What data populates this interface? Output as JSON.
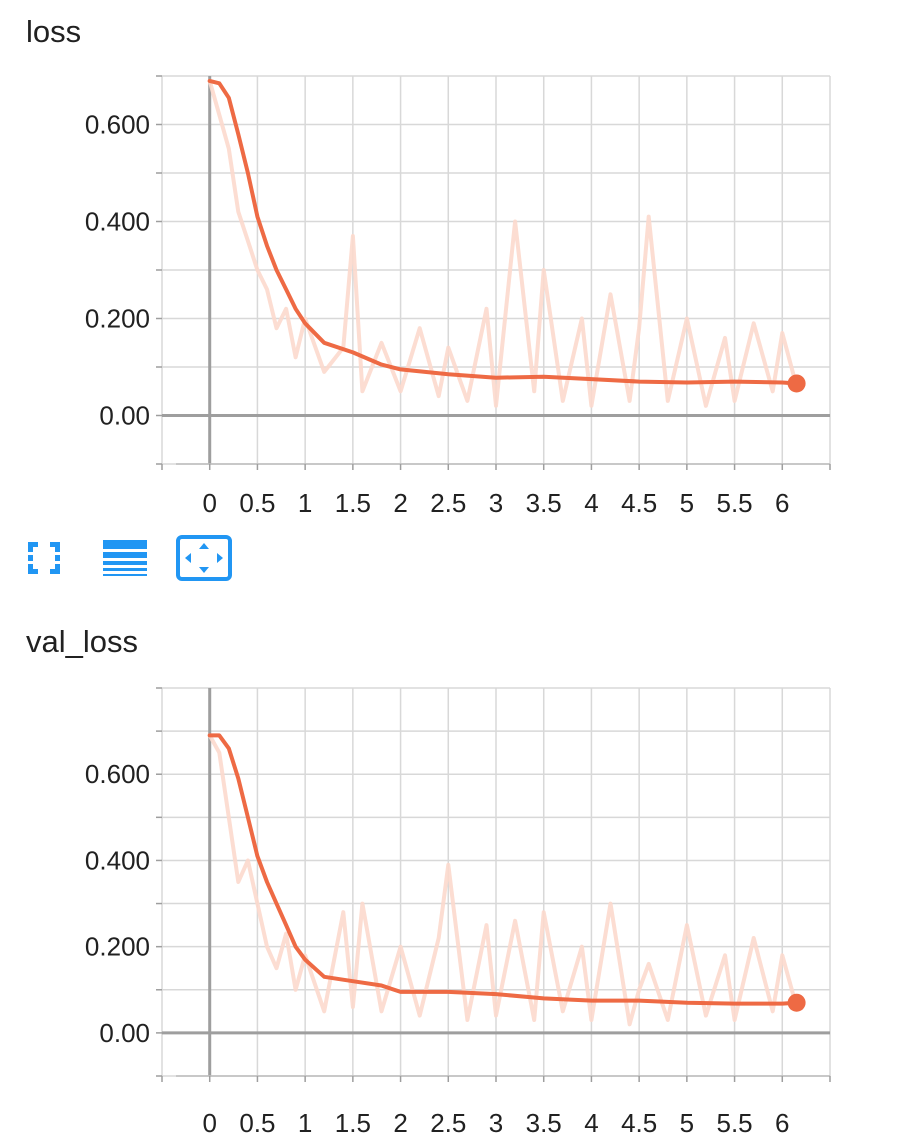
{
  "colors": {
    "smoothed_line": "#ee6a44",
    "raw_line": "#fcd9cd",
    "grid": "#d8d8d8",
    "axis": "#9e9e9e",
    "toolbar_icon": "#2196f3"
  },
  "toolbar": {
    "icons": [
      "fullscreen-icon",
      "toggle-y-log-icon",
      "fit-domain-icon"
    ]
  },
  "chart_data": [
    {
      "type": "line",
      "title": "loss",
      "xlabel": "",
      "ylabel": "",
      "x_ticks": [
        "0",
        "0.5",
        "1",
        "1.5",
        "2",
        "2.5",
        "3",
        "3.5",
        "4",
        "4.5",
        "5",
        "5.5",
        "6"
      ],
      "y_ticks": [
        "0.00",
        "0.200",
        "0.400",
        "0.600"
      ],
      "xlim": [
        -0.5,
        6.5
      ],
      "ylim": [
        -0.1,
        0.7
      ],
      "grid": true,
      "series": [
        {
          "kind": "smoothed",
          "x": [
            0,
            0.1,
            0.2,
            0.3,
            0.4,
            0.5,
            0.6,
            0.7,
            0.8,
            0.9,
            1.0,
            1.2,
            1.5,
            1.8,
            2.0,
            2.5,
            3.0,
            3.5,
            4.0,
            4.5,
            5.0,
            5.5,
            6.0,
            6.15
          ],
          "values": [
            0.69,
            0.685,
            0.655,
            0.58,
            0.5,
            0.41,
            0.35,
            0.3,
            0.26,
            0.22,
            0.19,
            0.15,
            0.13,
            0.105,
            0.095,
            0.085,
            0.078,
            0.08,
            0.075,
            0.07,
            0.068,
            0.07,
            0.068,
            0.066
          ]
        },
        {
          "kind": "raw",
          "x": [
            0,
            0.1,
            0.2,
            0.3,
            0.4,
            0.5,
            0.6,
            0.7,
            0.8,
            0.9,
            1.0,
            1.2,
            1.4,
            1.5,
            1.6,
            1.8,
            2.0,
            2.2,
            2.4,
            2.5,
            2.7,
            2.9,
            3.0,
            3.2,
            3.4,
            3.5,
            3.7,
            3.9,
            4.0,
            4.2,
            4.4,
            4.5,
            4.6,
            4.8,
            5.0,
            5.2,
            5.4,
            5.5,
            5.7,
            5.9,
            6.0,
            6.15
          ],
          "values": [
            0.69,
            0.62,
            0.55,
            0.42,
            0.36,
            0.3,
            0.26,
            0.18,
            0.22,
            0.12,
            0.2,
            0.09,
            0.14,
            0.37,
            0.05,
            0.15,
            0.05,
            0.18,
            0.04,
            0.14,
            0.03,
            0.22,
            0.02,
            0.4,
            0.05,
            0.3,
            0.03,
            0.2,
            0.02,
            0.25,
            0.03,
            0.18,
            0.41,
            0.03,
            0.2,
            0.02,
            0.16,
            0.03,
            0.19,
            0.05,
            0.17,
            0.06
          ]
        }
      ]
    },
    {
      "type": "line",
      "title": "val_loss",
      "xlabel": "",
      "ylabel": "",
      "x_ticks": [
        "0",
        "0.5",
        "1",
        "1.5",
        "2",
        "2.5",
        "3",
        "3.5",
        "4",
        "4.5",
        "5",
        "5.5",
        "6"
      ],
      "y_ticks": [
        "0.00",
        "0.200",
        "0.400",
        "0.600"
      ],
      "xlim": [
        -0.5,
        6.5
      ],
      "ylim": [
        -0.1,
        0.8
      ],
      "grid": true,
      "series": [
        {
          "kind": "smoothed",
          "x": [
            0,
            0.1,
            0.2,
            0.3,
            0.4,
            0.5,
            0.6,
            0.7,
            0.8,
            0.9,
            1.0,
            1.2,
            1.5,
            1.8,
            2.0,
            2.5,
            3.0,
            3.5,
            4.0,
            4.5,
            5.0,
            5.5,
            6.0,
            6.15
          ],
          "values": [
            0.69,
            0.69,
            0.66,
            0.59,
            0.5,
            0.41,
            0.35,
            0.3,
            0.25,
            0.2,
            0.17,
            0.13,
            0.12,
            0.11,
            0.095,
            0.095,
            0.09,
            0.08,
            0.075,
            0.075,
            0.07,
            0.068,
            0.068,
            0.07
          ]
        },
        {
          "kind": "raw",
          "x": [
            0,
            0.1,
            0.2,
            0.3,
            0.4,
            0.5,
            0.6,
            0.7,
            0.8,
            0.9,
            1.0,
            1.2,
            1.4,
            1.5,
            1.6,
            1.8,
            2.0,
            2.2,
            2.4,
            2.5,
            2.7,
            2.9,
            3.0,
            3.2,
            3.4,
            3.5,
            3.7,
            3.9,
            4.0,
            4.2,
            4.4,
            4.5,
            4.6,
            4.8,
            5.0,
            5.2,
            5.4,
            5.5,
            5.7,
            5.9,
            6.0,
            6.15
          ],
          "values": [
            0.69,
            0.65,
            0.5,
            0.35,
            0.4,
            0.3,
            0.2,
            0.15,
            0.23,
            0.1,
            0.18,
            0.05,
            0.28,
            0.06,
            0.3,
            0.05,
            0.2,
            0.04,
            0.22,
            0.39,
            0.03,
            0.25,
            0.04,
            0.26,
            0.03,
            0.28,
            0.05,
            0.2,
            0.03,
            0.3,
            0.02,
            0.1,
            0.16,
            0.03,
            0.25,
            0.04,
            0.18,
            0.03,
            0.22,
            0.05,
            0.18,
            0.06
          ]
        }
      ]
    }
  ]
}
